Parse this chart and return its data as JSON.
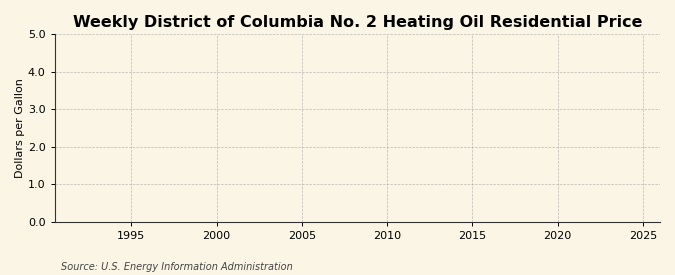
{
  "title": "Weekly District of Columbia No. 2 Heating Oil Residential Price",
  "ylabel": "Dollars per Gallon",
  "source": "Source: U.S. Energy Information Administration",
  "background_color": "#FAF5E4",
  "line_color": "#CC0000",
  "xlim": [
    1990.5,
    2026
  ],
  "ylim": [
    0.0,
    5.0
  ],
  "xticks": [
    1995,
    2000,
    2005,
    2010,
    2015,
    2020,
    2025
  ],
  "yticks": [
    0.0,
    1.0,
    2.0,
    3.0,
    4.0,
    5.0
  ],
  "title_fontsize": 11.5,
  "label_fontsize": 8,
  "tick_fontsize": 8,
  "source_fontsize": 7
}
